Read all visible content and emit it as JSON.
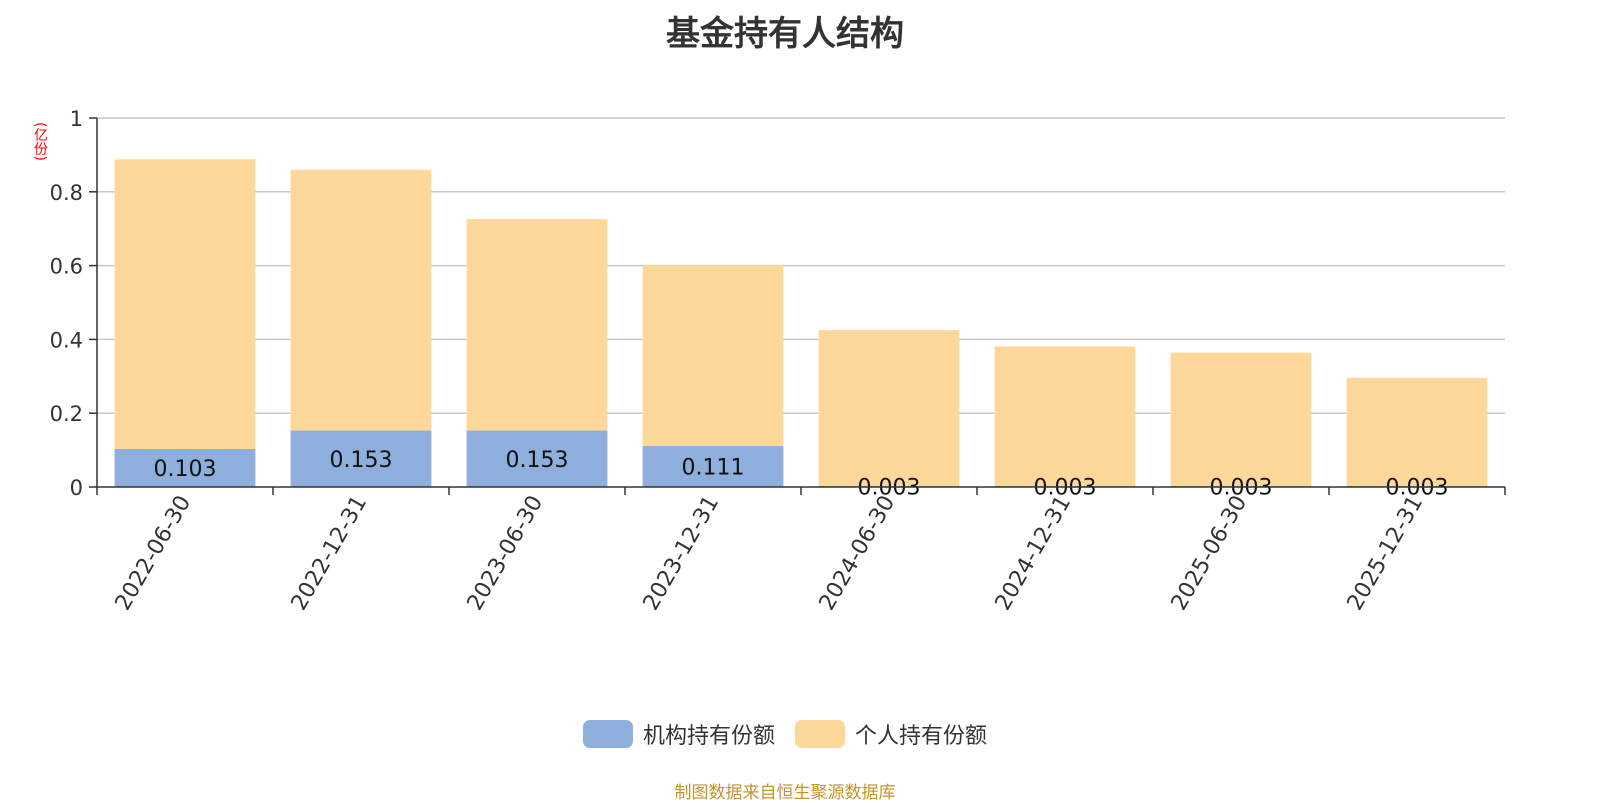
{
  "chart_data": {
    "type": "bar",
    "stacked": true,
    "title": "基金持有人结构",
    "unit_label": "(亿份)",
    "categories": [
      "2022-06-30",
      "2022-12-31",
      "2023-06-30",
      "2023-12-31",
      "2024-06-30",
      "2024-12-31",
      "2025-06-30",
      "2025-12-31"
    ],
    "series": [
      {
        "name": "机构持有份额",
        "color": "#8eaedc",
        "values": [
          0.103,
          0.153,
          0.153,
          0.111,
          0.003,
          0.003,
          0.003,
          0.003
        ],
        "labels": [
          "0.103",
          "0.153",
          "0.153",
          "0.111",
          "0.003",
          "0.003",
          "0.003",
          "0.003"
        ]
      },
      {
        "name": "个人持有份额",
        "color": "#fdd89a",
        "values": [
          0.785,
          0.707,
          0.573,
          0.49,
          0.422,
          0.378,
          0.361,
          0.293
        ]
      }
    ],
    "y_ticks": [
      "0",
      "0.2",
      "0.4",
      "0.6",
      "0.8",
      "1"
    ],
    "ylim": [
      0,
      1
    ],
    "grid": true,
    "legend": "bottom-center"
  },
  "source_note": "制图数据来自恒生聚源数据库"
}
